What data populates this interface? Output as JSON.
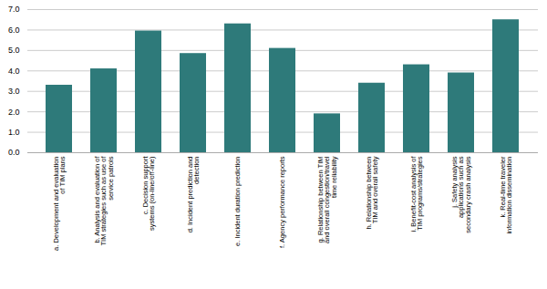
{
  "chart_data": {
    "type": "bar",
    "categories": [
      "a. Development and evaluation\nof TIM plans",
      "b. Analysis and evaluation of\nTIM strategies such as use of\nservice patrols",
      "c. Decision support\nsystems (on-line/off-line)",
      "d. Incident prediction and\ndetection",
      "e. Incident duration prediction",
      "f. Agency performance reports",
      "g. Relationship between TIM\nand overall congestion/travel\ntime reliability",
      "h. Relationship between\nTIM and overall safety",
      "i. Benefit-cost analysis of\nTIM programs/strategies",
      "j. Safety analysis\napplications such as\nsecondary crash analysis",
      "k. Real-time traveler\ninformation dissemination"
    ],
    "values": [
      3.3,
      4.1,
      5.95,
      4.85,
      6.3,
      5.1,
      1.9,
      3.4,
      4.3,
      3.9,
      6.5
    ],
    "color": "#2E7A7A",
    "ylim": [
      0,
      7
    ],
    "yticks": [
      0,
      1,
      2,
      3,
      4,
      5,
      6,
      7
    ],
    "grid": true
  }
}
